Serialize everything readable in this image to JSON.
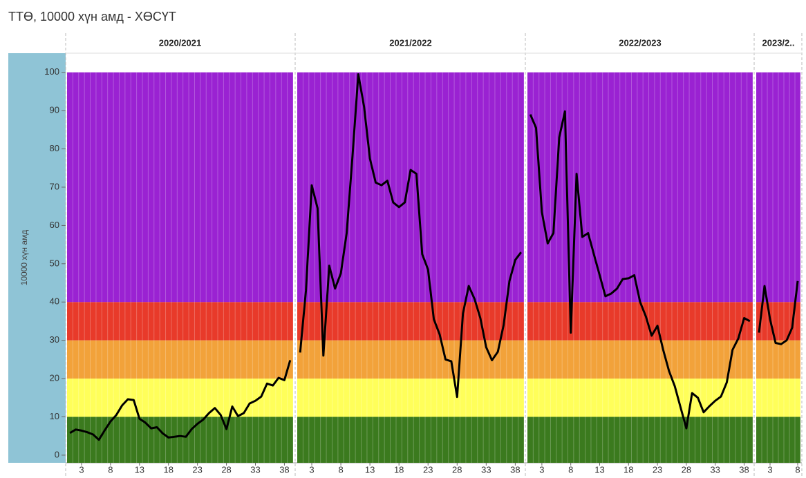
{
  "title": "ТТӨ, 10000 хүн амд - ХӨСҮТ",
  "chart_data": [
    {
      "type": "line",
      "title": "2020/2021",
      "y_label": "10000 хүн амд",
      "color": "#000000",
      "ylim": [
        -2,
        105
      ],
      "yticks": [
        0,
        10,
        20,
        30,
        40,
        50,
        60,
        70,
        80,
        90,
        100
      ],
      "bands": [
        {
          "to": 10,
          "color": "#3b7a1e"
        },
        {
          "to": 20,
          "color": "#ffff5a"
        },
        {
          "to": 30,
          "color": "#f2a23a"
        },
        {
          "to": 40,
          "color": "#e83a2a"
        },
        {
          "to": 100,
          "color": "#9a22d2"
        }
      ],
      "xlim": [
        0.5,
        39.5
      ],
      "xticks": [
        3,
        8,
        13,
        18,
        23,
        28,
        33,
        38
      ],
      "x": [
        1,
        2,
        3,
        4,
        5,
        6,
        7,
        8,
        9,
        10,
        11,
        12,
        13,
        14,
        15,
        16,
        17,
        18,
        19,
        20,
        21,
        22,
        23,
        24,
        25,
        26,
        27,
        28,
        29,
        30,
        31,
        32,
        33,
        34,
        35,
        36,
        37,
        38,
        39
      ],
      "values": [
        5.8,
        6.7,
        6.4,
        6.0,
        5.4,
        4.0,
        6.5,
        8.8,
        10.5,
        13.0,
        14.6,
        14.4,
        9.5,
        8.5,
        7.0,
        7.3,
        5.7,
        4.6,
        4.8,
        5.0,
        4.8,
        6.8,
        8.2,
        9.3,
        11.0,
        12.3,
        10.5,
        6.8,
        12.7,
        10.2,
        11.0,
        13.5,
        14.2,
        15.3,
        18.7,
        18.2,
        20.2,
        19.6,
        24.8
      ]
    },
    {
      "type": "line",
      "title": "2021/2022",
      "color": "#000000",
      "xlim": [
        0.5,
        39.5
      ],
      "xticks": [
        3,
        8,
        13,
        18,
        23,
        28,
        33,
        38
      ],
      "x": [
        1,
        2,
        3,
        4,
        5,
        6,
        7,
        8,
        9,
        10,
        11,
        12,
        13,
        14,
        15,
        16,
        17,
        18,
        19,
        20,
        21,
        22,
        23,
        24,
        25,
        26,
        27,
        28,
        29,
        30,
        31,
        32,
        33,
        34,
        35,
        36,
        37,
        38,
        39
      ],
      "values": [
        26.8,
        43,
        70.5,
        64.5,
        26,
        49.5,
        43.5,
        47.5,
        58,
        78,
        99.5,
        91,
        77.5,
        71.2,
        70.5,
        71.7,
        66,
        64.8,
        66,
        74.5,
        73.5,
        52.5,
        48.5,
        35.5,
        31.5,
        25,
        24.5,
        15.2,
        37,
        44.2,
        40.8,
        35.8,
        28.2,
        24.8,
        27,
        34,
        45.5,
        51,
        53
      ]
    },
    {
      "type": "line",
      "title": "2022/2023",
      "color": "#000000",
      "xlim": [
        0.5,
        39.5
      ],
      "xticks": [
        3,
        8,
        13,
        18,
        23,
        28,
        33,
        38
      ],
      "x": [
        1,
        2,
        3,
        4,
        5,
        6,
        7,
        8,
        9,
        10,
        11,
        12,
        13,
        14,
        15,
        16,
        17,
        18,
        19,
        20,
        21,
        22,
        23,
        24,
        25,
        26,
        27,
        28,
        29,
        30,
        31,
        32,
        33,
        34,
        35,
        36,
        37,
        38,
        39
      ],
      "values": [
        89,
        85.5,
        63.5,
        55.3,
        58,
        83,
        89.8,
        32,
        73.5,
        57,
        58,
        52.5,
        47,
        41.5,
        42.2,
        43.5,
        46,
        46.2,
        47,
        40,
        36.2,
        31.2,
        33.8,
        27.5,
        22,
        18,
        12.5,
        7,
        16.2,
        15,
        11.2,
        12.8,
        14.2,
        15.3,
        19,
        27.5,
        30.5,
        35.8,
        35
      ]
    },
    {
      "type": "line",
      "title": "2023/2..",
      "color": "#000000",
      "xlim": [
        0.5,
        8.5
      ],
      "xticks": [
        3,
        8
      ],
      "x": [
        1,
        2,
        3,
        4,
        5,
        6,
        7,
        8
      ],
      "values": [
        32,
        44.2,
        35.5,
        29.3,
        29,
        30,
        33.3,
        45.5
      ]
    }
  ]
}
